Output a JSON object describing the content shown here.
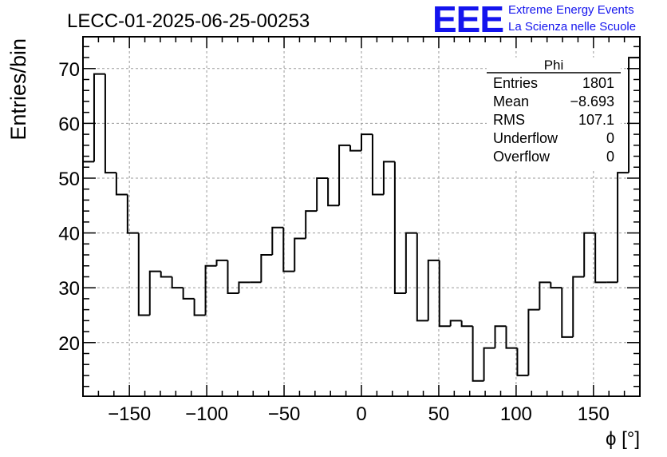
{
  "chart_data": {
    "type": "bar",
    "title": "LECC-01-2025-06-25-00253",
    "xlabel": "ϕ [°]",
    "ylabel": "Entries/bin",
    "xlim": [
      -180,
      180
    ],
    "ylim": [
      10.2,
      75.8
    ],
    "bin_width": 7.2,
    "x_ticks": [
      -150,
      -100,
      -50,
      0,
      50,
      100,
      150
    ],
    "x_tick_labels": [
      "−150",
      "−100",
      "−50",
      "0",
      "50",
      "100",
      "150"
    ],
    "y_ticks": [
      20,
      30,
      40,
      50,
      60,
      70
    ],
    "y_tick_labels": [
      "20",
      "30",
      "40",
      "50",
      "60",
      "70"
    ],
    "grid": true,
    "series": [
      {
        "bin_edges_start": -180,
        "values": [
          53,
          69,
          51,
          47,
          40,
          25,
          33,
          32,
          30,
          28,
          25,
          34,
          35,
          29,
          31,
          31,
          36,
          41,
          33,
          39,
          44,
          50,
          45,
          56,
          55,
          58,
          47,
          53,
          29,
          40,
          24,
          35,
          23,
          24,
          23,
          13,
          19,
          23,
          19,
          14,
          26,
          31,
          30,
          21,
          32,
          40,
          31,
          31,
          51,
          72
        ]
      }
    ],
    "stats_box": {
      "name": "Phi",
      "rows": [
        {
          "label": "Entries",
          "value": "1801"
        },
        {
          "label": "Mean",
          "value": "−8.693"
        },
        {
          "label": "RMS",
          "value": "107.1"
        },
        {
          "label": "Underflow",
          "value": "0"
        },
        {
          "label": "Overflow",
          "value": "0"
        }
      ]
    }
  },
  "logo": {
    "text": "EEE",
    "line1": "Extreme Energy Events",
    "line2": "La Scienza nelle Scuole",
    "color": "#1414ee"
  },
  "colors": {
    "line": "#000000",
    "grid": "#9a9a9a"
  }
}
